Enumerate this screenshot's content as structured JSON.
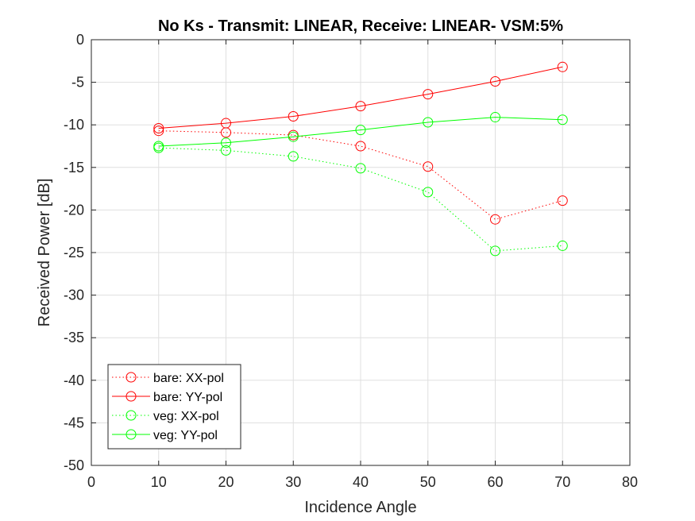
{
  "chart_data": {
    "type": "line",
    "title": "No Ks - Transmit: LINEAR, Receive: LINEAR- VSM:5%",
    "xlabel": "Incidence Angle",
    "ylabel": "Received Power [dB]",
    "xlim": [
      0,
      80
    ],
    "ylim": [
      -50,
      0
    ],
    "xticks": [
      0,
      10,
      20,
      30,
      40,
      50,
      60,
      70,
      80
    ],
    "yticks": [
      0,
      -5,
      -10,
      -15,
      -20,
      -25,
      -30,
      -35,
      -40,
      -45,
      -50
    ],
    "grid": true,
    "legend_position": "bottom-left",
    "x": [
      10,
      20,
      30,
      40,
      50,
      60,
      70
    ],
    "series": [
      {
        "name": "bare: XX-pol",
        "color": "#ff0000",
        "line_style": "dotted",
        "marker": "circle",
        "values": [
          -10.7,
          -10.9,
          -11.2,
          -12.5,
          -14.9,
          -21.1,
          -18.9
        ]
      },
      {
        "name": "bare: YY-pol",
        "color": "#ff0000",
        "line_style": "solid",
        "marker": "circle",
        "values": [
          -10.4,
          -9.8,
          -9.0,
          -7.8,
          -6.4,
          -4.9,
          -3.2
        ]
      },
      {
        "name": "veg: XX-pol",
        "color": "#00ff00",
        "line_style": "dotted",
        "marker": "circle",
        "values": [
          -12.7,
          -13.0,
          -13.7,
          -15.1,
          -17.9,
          -24.8,
          -24.2
        ]
      },
      {
        "name": "veg: YY-pol",
        "color": "#00ff00",
        "line_style": "solid",
        "marker": "circle",
        "values": [
          -12.5,
          -12.1,
          -11.4,
          -10.6,
          -9.7,
          -9.1,
          -9.4
        ]
      }
    ]
  }
}
